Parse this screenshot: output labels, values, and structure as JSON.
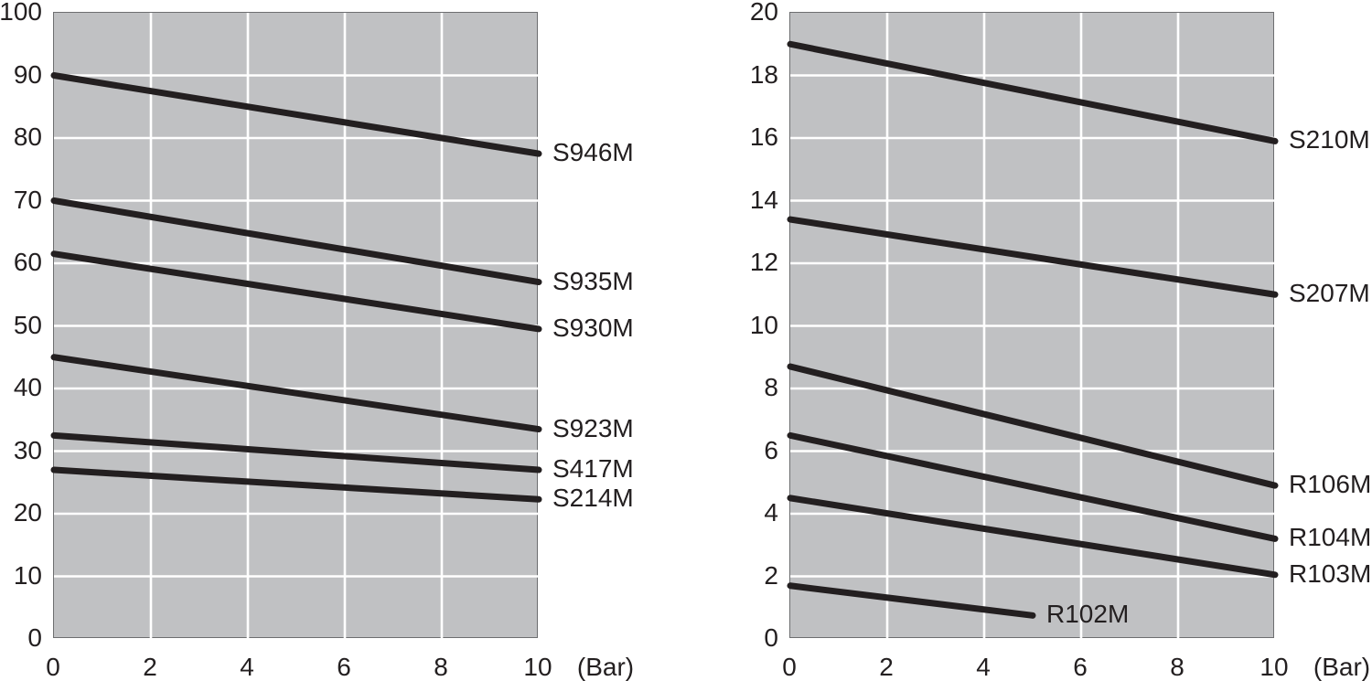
{
  "figure": {
    "description": "Two pressure-performance line charts",
    "x_unit_label": "(Bar)"
  },
  "colors": {
    "page_bg": "#ffffff",
    "plot_bg": "#c0c1c3",
    "grid": "#ffffff",
    "plot_border": "#6d6e70",
    "line": "#231f20",
    "text": "#231f20"
  },
  "chart_data": [
    {
      "type": "line",
      "title": "",
      "xlabel": "(Bar)",
      "ylabel": "",
      "xlim": [
        0,
        10
      ],
      "ylim": [
        0,
        100
      ],
      "x_ticks": [
        0,
        2,
        4,
        6,
        8,
        10
      ],
      "y_ticks": [
        0,
        10,
        20,
        30,
        40,
        50,
        60,
        70,
        80,
        90,
        100
      ],
      "grid": true,
      "legend_position": "labels-at-line-ends",
      "series": [
        {
          "name": "S946M",
          "x": [
            0,
            10
          ],
          "y": [
            90,
            77.5
          ]
        },
        {
          "name": "S935M",
          "x": [
            0,
            10
          ],
          "y": [
            70,
            57
          ]
        },
        {
          "name": "S930M",
          "x": [
            0,
            10
          ],
          "y": [
            61.5,
            49.5
          ]
        },
        {
          "name": "S923M",
          "x": [
            0,
            10
          ],
          "y": [
            45,
            33.5
          ]
        },
        {
          "name": "S417M",
          "x": [
            0,
            10
          ],
          "y": [
            32.5,
            27
          ]
        },
        {
          "name": "S214M",
          "x": [
            0,
            10
          ],
          "y": [
            27,
            22.3
          ]
        }
      ]
    },
    {
      "type": "line",
      "title": "",
      "xlabel": "(Bar)",
      "ylabel": "",
      "xlim": [
        0,
        10
      ],
      "ylim": [
        0,
        20
      ],
      "x_ticks": [
        0,
        2,
        4,
        6,
        8,
        10
      ],
      "y_ticks": [
        0,
        2,
        4,
        6,
        8,
        10,
        12,
        14,
        16,
        18,
        20
      ],
      "grid": true,
      "legend_position": "labels-at-line-ends",
      "series": [
        {
          "name": "S210M",
          "x": [
            0,
            10
          ],
          "y": [
            19,
            15.9
          ]
        },
        {
          "name": "S207M",
          "x": [
            0,
            10
          ],
          "y": [
            13.4,
            11
          ]
        },
        {
          "name": "R106M",
          "x": [
            0,
            10
          ],
          "y": [
            8.7,
            4.9
          ]
        },
        {
          "name": "R104M",
          "x": [
            0,
            10
          ],
          "y": [
            6.5,
            3.2
          ]
        },
        {
          "name": "R103M",
          "x": [
            0,
            10
          ],
          "y": [
            4.5,
            2.05
          ]
        },
        {
          "name": "R102M",
          "x": [
            0,
            5
          ],
          "y": [
            1.7,
            0.75
          ]
        }
      ]
    }
  ]
}
